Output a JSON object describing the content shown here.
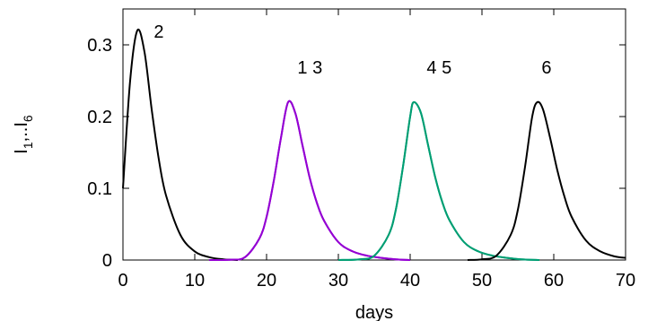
{
  "chart_data": {
    "type": "line",
    "xlabel": "days",
    "ylabel": "I",
    "ylabel_subscripts": [
      "1",
      "6"
    ],
    "ylabel_separator": ",..",
    "xlim": [
      0,
      70
    ],
    "ylim": [
      0,
      0.35
    ],
    "x_ticks": [
      0,
      10,
      20,
      30,
      40,
      50,
      60,
      70
    ],
    "y_ticks": [
      0,
      0.1,
      0.2,
      0.3
    ],
    "y_tick_labels": [
      "0",
      "0.1",
      "0.2",
      "0.3"
    ],
    "grid": false,
    "series": [
      {
        "color": "#000000",
        "x": [
          0,
          1,
          2,
          3,
          4,
          5,
          6,
          8,
          10,
          12,
          14,
          16
        ],
        "y": [
          0.1,
          0.25,
          0.32,
          0.29,
          0.21,
          0.14,
          0.09,
          0.035,
          0.012,
          0.004,
          0.001,
          0.0
        ]
      },
      {
        "color": "#9400d3",
        "x": [
          12,
          15,
          17,
          19,
          20,
          21,
          22,
          23,
          24,
          25,
          26,
          27,
          28,
          30,
          32,
          34,
          36,
          38,
          40
        ],
        "y": [
          0.0,
          0.0005,
          0.004,
          0.03,
          0.06,
          0.11,
          0.17,
          0.22,
          0.205,
          0.16,
          0.115,
          0.08,
          0.055,
          0.025,
          0.012,
          0.006,
          0.003,
          0.001,
          0.0
        ]
      },
      {
        "color": "#9400d3",
        "x": [
          12,
          15,
          17,
          19,
          20,
          21,
          22,
          23,
          24,
          25,
          26,
          27,
          28,
          30,
          32,
          34,
          36,
          38,
          40
        ],
        "y": [
          0.0,
          0.0005,
          0.004,
          0.03,
          0.06,
          0.11,
          0.17,
          0.22,
          0.205,
          0.16,
          0.115,
          0.08,
          0.055,
          0.025,
          0.012,
          0.006,
          0.003,
          0.001,
          0.0
        ]
      },
      {
        "color": "#009e73",
        "x": [
          30,
          33,
          35,
          37,
          38,
          39,
          40,
          40.5,
          41.5,
          42.5,
          43.5,
          44.5,
          45.5,
          47.5,
          49.5,
          51.5,
          53.5,
          55.5,
          58
        ],
        "y": [
          0.0,
          0.001,
          0.006,
          0.035,
          0.07,
          0.13,
          0.2,
          0.22,
          0.205,
          0.16,
          0.115,
          0.08,
          0.055,
          0.025,
          0.012,
          0.006,
          0.003,
          0.001,
          0.0
        ]
      },
      {
        "color": "#009e73",
        "x": [
          30,
          33,
          35,
          37,
          38,
          39,
          40,
          40.5,
          41.5,
          42.5,
          43.5,
          44.5,
          45.5,
          47.5,
          49.5,
          51.5,
          53.5,
          55.5,
          58
        ],
        "y": [
          0.0,
          0.001,
          0.006,
          0.035,
          0.07,
          0.13,
          0.2,
          0.22,
          0.205,
          0.16,
          0.115,
          0.08,
          0.055,
          0.025,
          0.012,
          0.006,
          0.003,
          0.001,
          0.0
        ]
      },
      {
        "color": "#000000",
        "x": [
          48,
          50,
          52,
          54,
          55,
          56,
          57,
          57.7,
          58.5,
          59.5,
          60.5,
          61.5,
          62.5,
          64.5,
          66.5,
          68.5,
          70
        ],
        "y": [
          0.0,
          0.001,
          0.006,
          0.035,
          0.07,
          0.13,
          0.2,
          0.22,
          0.21,
          0.17,
          0.125,
          0.088,
          0.06,
          0.027,
          0.012,
          0.005,
          0.003
        ]
      }
    ],
    "annotations": [
      {
        "text": "2",
        "x": 4.3,
        "y": 0.31
      },
      {
        "text": "1 3",
        "x": 24.3,
        "y": 0.26
      },
      {
        "text": "4 5",
        "x": 42.3,
        "y": 0.26
      },
      {
        "text": "6",
        "x": 58.3,
        "y": 0.26
      }
    ]
  }
}
